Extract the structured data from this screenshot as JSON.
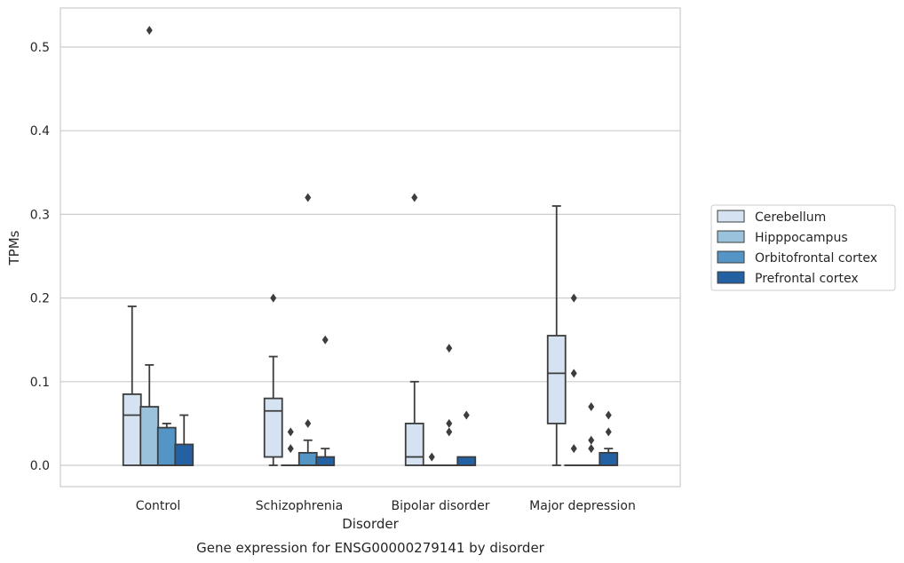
{
  "chart_data": {
    "type": "box",
    "title": "",
    "caption": "Gene expression for ENSG00000279141 by disorder",
    "xlabel": "Disorder",
    "ylabel": "TPMs",
    "ylim": [
      -0.025,
      0.547
    ],
    "yticks": [
      0.0,
      0.1,
      0.2,
      0.3,
      0.4,
      0.5
    ],
    "grid": "horizontal",
    "legend_position": "outside-right",
    "categories": [
      "Control",
      "Schizophrenia",
      "Bipolar disorder",
      "Major depression"
    ],
    "series": [
      {
        "name": "Cerebellum",
        "color": "#d4e2f1",
        "boxes": [
          {
            "min": 0.0,
            "q1": 0.0,
            "median": 0.06,
            "q3": 0.085,
            "max": 0.19,
            "outliers": []
          },
          {
            "min": 0.0,
            "q1": 0.01,
            "median": 0.065,
            "q3": 0.08,
            "max": 0.13,
            "outliers": [
              0.2
            ]
          },
          {
            "min": 0.0,
            "q1": 0.0,
            "median": 0.01,
            "q3": 0.05,
            "max": 0.1,
            "outliers": [
              0.32
            ]
          },
          {
            "min": 0.0,
            "q1": 0.05,
            "median": 0.11,
            "q3": 0.155,
            "max": 0.31,
            "outliers": []
          }
        ]
      },
      {
        "name": "Hipppocampus",
        "color": "#9bc2dc",
        "boxes": [
          {
            "min": 0.0,
            "q1": 0.0,
            "median": 0.0,
            "q3": 0.07,
            "max": 0.12,
            "outliers": [
              0.52
            ]
          },
          {
            "min": 0.0,
            "q1": 0.0,
            "median": 0.0,
            "q3": 0.0,
            "max": 0.0,
            "outliers": [
              0.02,
              0.04
            ]
          },
          {
            "min": 0.0,
            "q1": 0.0,
            "median": 0.0,
            "q3": 0.0,
            "max": 0.0,
            "outliers": [
              0.01
            ]
          },
          {
            "min": 0.0,
            "q1": 0.0,
            "median": 0.0,
            "q3": 0.0,
            "max": 0.0,
            "outliers": [
              0.02,
              0.11,
              0.2
            ]
          }
        ]
      },
      {
        "name": "Orbitofrontal cortex",
        "color": "#5495c6",
        "boxes": [
          {
            "min": 0.0,
            "q1": 0.0,
            "median": 0.0,
            "q3": 0.045,
            "max": 0.05,
            "outliers": []
          },
          {
            "min": 0.0,
            "q1": 0.0,
            "median": 0.0,
            "q3": 0.015,
            "max": 0.03,
            "outliers": [
              0.05,
              0.32
            ]
          },
          {
            "min": 0.0,
            "q1": 0.0,
            "median": 0.0,
            "q3": 0.0,
            "max": 0.0,
            "outliers": [
              0.04,
              0.05,
              0.14
            ]
          },
          {
            "min": 0.0,
            "q1": 0.0,
            "median": 0.0,
            "q3": 0.0,
            "max": 0.0,
            "outliers": [
              0.02,
              0.03,
              0.07
            ]
          }
        ]
      },
      {
        "name": "Prefrontal cortex",
        "color": "#2461a2",
        "boxes": [
          {
            "min": 0.0,
            "q1": 0.0,
            "median": 0.0,
            "q3": 0.025,
            "max": 0.06,
            "outliers": []
          },
          {
            "min": 0.0,
            "q1": 0.0,
            "median": 0.0,
            "q3": 0.01,
            "max": 0.02,
            "outliers": [
              0.15
            ]
          },
          {
            "min": 0.0,
            "q1": 0.0,
            "median": 0.0,
            "q3": 0.01,
            "max": 0.01,
            "outliers": [
              0.06
            ]
          },
          {
            "min": 0.0,
            "q1": 0.0,
            "median": 0.0,
            "q3": 0.015,
            "max": 0.02,
            "outliers": [
              0.04,
              0.06
            ]
          }
        ]
      }
    ]
  }
}
